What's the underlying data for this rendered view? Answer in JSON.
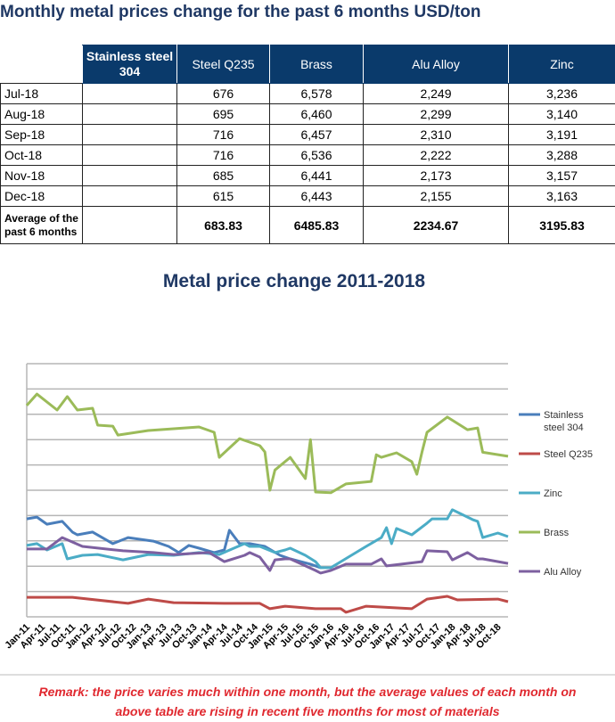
{
  "header": {
    "title": "Monthly metal prices change for the past 6 months USD/ton"
  },
  "table": {
    "columns": [
      "",
      "Stainless steel 304",
      "Steel Q235",
      "Brass",
      "Alu Alloy",
      "Zinc"
    ],
    "rows": [
      [
        "Jul-18",
        "",
        "676",
        "6,578",
        "2,249",
        "3,236"
      ],
      [
        "Aug-18",
        "",
        "695",
        "6,460",
        "2,299",
        "3,140"
      ],
      [
        "Sep-18",
        "",
        "716",
        "6,457",
        "2,310",
        "3,191"
      ],
      [
        "Oct-18",
        "",
        "716",
        "6,536",
        "2,222",
        "3,288"
      ],
      [
        "Nov-18",
        "",
        "685",
        "6,441",
        "2,173",
        "3,157"
      ],
      [
        "Dec-18",
        "",
        "615",
        "6,443",
        "2,155",
        "3,163"
      ]
    ],
    "average": [
      "Average of the past 6 months",
      "",
      "683.83",
      "6485.83",
      "2234.67",
      "3195.83"
    ]
  },
  "chart_data": {
    "type": "line",
    "title": "Metal price change 2011-2018",
    "xlabel": "",
    "ylabel": "",
    "x_ticks": [
      "Jan-11",
      "Apr-11",
      "Jul-11",
      "Oct-11",
      "Jan-12",
      "Apr-12",
      "Jul-12",
      "Oct-12",
      "Jan-13",
      "Apr-13",
      "Jul-13",
      "Oct-13",
      "Jan-14",
      "Apr-14",
      "Jul-14",
      "Oct-14",
      "Jan-15",
      "Apr-15",
      "Jul-15",
      "Oct-15",
      "Jan-16",
      "Apr-16",
      "Jul-16",
      "Oct-16",
      "Jan-17",
      "Apr-17",
      "Jul-17",
      "Oct-17",
      "Jan-18",
      "Apr-18",
      "Jul-18",
      "Oct-18"
    ],
    "xlim": [
      "2011-01",
      "2018-12"
    ],
    "ylim": [
      0,
      10
    ],
    "y_unit_note": "",
    "grid": true,
    "legend": "right",
    "series": [
      {
        "name": "Stainless steel 304",
        "color": "#4a7ebb",
        "points": [
          [
            "2011-01",
            3.87
          ],
          [
            "2011-03",
            3.94
          ],
          [
            "2011-05",
            3.66
          ],
          [
            "2011-08",
            3.77
          ],
          [
            "2011-10",
            3.35
          ],
          [
            "2011-11",
            3.24
          ],
          [
            "2012-02",
            3.35
          ],
          [
            "2012-06",
            2.89
          ],
          [
            "2012-09",
            3.13
          ],
          [
            "2013-02",
            2.99
          ],
          [
            "2013-05",
            2.78
          ],
          [
            "2013-07",
            2.54
          ],
          [
            "2013-09",
            2.82
          ],
          [
            "2013-11",
            2.71
          ],
          [
            "2014-02",
            2.54
          ],
          [
            "2014-04",
            2.64
          ],
          [
            "2014-05",
            3.42
          ],
          [
            "2014-07",
            2.89
          ],
          [
            "2014-09",
            2.89
          ],
          [
            "2014-12",
            2.78
          ],
          [
            "2015-03",
            2.43
          ],
          [
            "2015-05",
            2.29
          ],
          [
            "2015-09",
            2.08
          ],
          [
            "2015-11",
            1.94
          ]
        ]
      },
      {
        "name": "Steel Q235",
        "color": "#be4b48",
        "points": [
          [
            "2011-01",
            0.77
          ],
          [
            "2011-10",
            0.77
          ],
          [
            "2012-09",
            0.53
          ],
          [
            "2013-01",
            0.7
          ],
          [
            "2013-06",
            0.56
          ],
          [
            "2014-04",
            0.53
          ],
          [
            "2014-11",
            0.53
          ],
          [
            "2015-01",
            0.32
          ],
          [
            "2015-04",
            0.42
          ],
          [
            "2015-10",
            0.32
          ],
          [
            "2016-03",
            0.32
          ],
          [
            "2016-04",
            0.18
          ],
          [
            "2016-08",
            0.42
          ],
          [
            "2017-05",
            0.32
          ],
          [
            "2017-08",
            0.7
          ],
          [
            "2017-12",
            0.81
          ],
          [
            "2018-02",
            0.67
          ],
          [
            "2018-10",
            0.7
          ],
          [
            "2018-12",
            0.6
          ]
        ]
      },
      {
        "name": "Zinc",
        "color": "#4bacc6",
        "points": [
          [
            "2011-01",
            2.82
          ],
          [
            "2011-03",
            2.89
          ],
          [
            "2011-05",
            2.64
          ],
          [
            "2011-08",
            2.89
          ],
          [
            "2011-09",
            2.29
          ],
          [
            "2011-12",
            2.43
          ],
          [
            "2012-03",
            2.46
          ],
          [
            "2012-08",
            2.25
          ],
          [
            "2013-01",
            2.46
          ],
          [
            "2013-06",
            2.43
          ],
          [
            "2013-11",
            2.54
          ],
          [
            "2014-03",
            2.46
          ],
          [
            "2014-08",
            2.89
          ],
          [
            "2014-09",
            2.78
          ],
          [
            "2014-11",
            2.78
          ],
          [
            "2015-02",
            2.54
          ],
          [
            "2015-04",
            2.64
          ],
          [
            "2015-05",
            2.71
          ],
          [
            "2015-08",
            2.43
          ],
          [
            "2015-10",
            2.18
          ],
          [
            "2015-11",
            1.94
          ],
          [
            "2016-01",
            1.94
          ],
          [
            "2016-03",
            2.18
          ],
          [
            "2016-08",
            2.78
          ],
          [
            "2016-11",
            3.13
          ],
          [
            "2016-12",
            3.52
          ],
          [
            "2017-01",
            2.89
          ],
          [
            "2017-02",
            3.49
          ],
          [
            "2017-05",
            3.24
          ],
          [
            "2017-08",
            3.7
          ],
          [
            "2017-09",
            3.87
          ],
          [
            "2017-12",
            3.87
          ],
          [
            "2018-01",
            4.23
          ],
          [
            "2018-05",
            3.84
          ],
          [
            "2018-06",
            3.77
          ],
          [
            "2018-07",
            3.13
          ],
          [
            "2018-10",
            3.31
          ],
          [
            "2018-12",
            3.17
          ]
        ]
      },
      {
        "name": "Brass",
        "color": "#9bbb59",
        "points": [
          [
            "2011-01",
            8.35
          ],
          [
            "2011-03",
            8.8
          ],
          [
            "2011-07",
            8.17
          ],
          [
            "2011-09",
            8.7
          ],
          [
            "2011-11",
            8.17
          ],
          [
            "2012-02",
            8.24
          ],
          [
            "2012-03",
            7.57
          ],
          [
            "2012-06",
            7.53
          ],
          [
            "2012-07",
            7.18
          ],
          [
            "2013-01",
            7.36
          ],
          [
            "2013-11",
            7.5
          ],
          [
            "2014-02",
            7.29
          ],
          [
            "2014-03",
            6.3
          ],
          [
            "2014-07",
            7.04
          ],
          [
            "2014-11",
            6.76
          ],
          [
            "2014-12",
            6.51
          ],
          [
            "2015-01",
            5.0
          ],
          [
            "2015-02",
            5.8
          ],
          [
            "2015-05",
            6.3
          ],
          [
            "2015-08",
            5.46
          ],
          [
            "2015-09",
            7.0
          ],
          [
            "2015-10",
            4.93
          ],
          [
            "2016-01",
            4.9
          ],
          [
            "2016-04",
            5.25
          ],
          [
            "2016-09",
            5.35
          ],
          [
            "2016-10",
            6.4
          ],
          [
            "2016-11",
            6.3
          ],
          [
            "2017-02",
            6.48
          ],
          [
            "2017-05",
            6.13
          ],
          [
            "2017-06",
            5.63
          ],
          [
            "2017-07",
            6.5
          ],
          [
            "2017-08",
            7.29
          ],
          [
            "2017-12",
            7.89
          ],
          [
            "2018-04",
            7.39
          ],
          [
            "2018-06",
            7.46
          ],
          [
            "2018-07",
            6.5
          ],
          [
            "2018-12",
            6.34
          ]
        ]
      },
      {
        "name": "Alu Alloy",
        "color": "#7d60a0",
        "points": [
          [
            "2011-01",
            2.68
          ],
          [
            "2011-05",
            2.68
          ],
          [
            "2011-08",
            3.13
          ],
          [
            "2011-12",
            2.78
          ],
          [
            "2012-08",
            2.61
          ],
          [
            "2013-02",
            2.54
          ],
          [
            "2013-06",
            2.46
          ],
          [
            "2014-01",
            2.54
          ],
          [
            "2014-04",
            2.18
          ],
          [
            "2014-08",
            2.43
          ],
          [
            "2014-09",
            2.54
          ],
          [
            "2014-11",
            2.36
          ],
          [
            "2015-01",
            1.83
          ],
          [
            "2015-02",
            2.25
          ],
          [
            "2015-04",
            2.29
          ],
          [
            "2015-05",
            2.29
          ],
          [
            "2015-10",
            1.83
          ],
          [
            "2015-11",
            1.73
          ],
          [
            "2016-01",
            1.83
          ],
          [
            "2016-04",
            2.08
          ],
          [
            "2016-09",
            2.08
          ],
          [
            "2016-11",
            2.29
          ],
          [
            "2016-12",
            2.01
          ],
          [
            "2017-07",
            2.18
          ],
          [
            "2017-08",
            2.61
          ],
          [
            "2017-12",
            2.57
          ],
          [
            "2018-01",
            2.25
          ],
          [
            "2018-04",
            2.54
          ],
          [
            "2018-06",
            2.29
          ],
          [
            "2018-07",
            2.29
          ],
          [
            "2018-12",
            2.11
          ]
        ]
      }
    ]
  },
  "remark": {
    "line1": "Remark: the price varies much within one month, but the average values of each month on",
    "line2": "above table are rising in recent five months for most of materials"
  }
}
